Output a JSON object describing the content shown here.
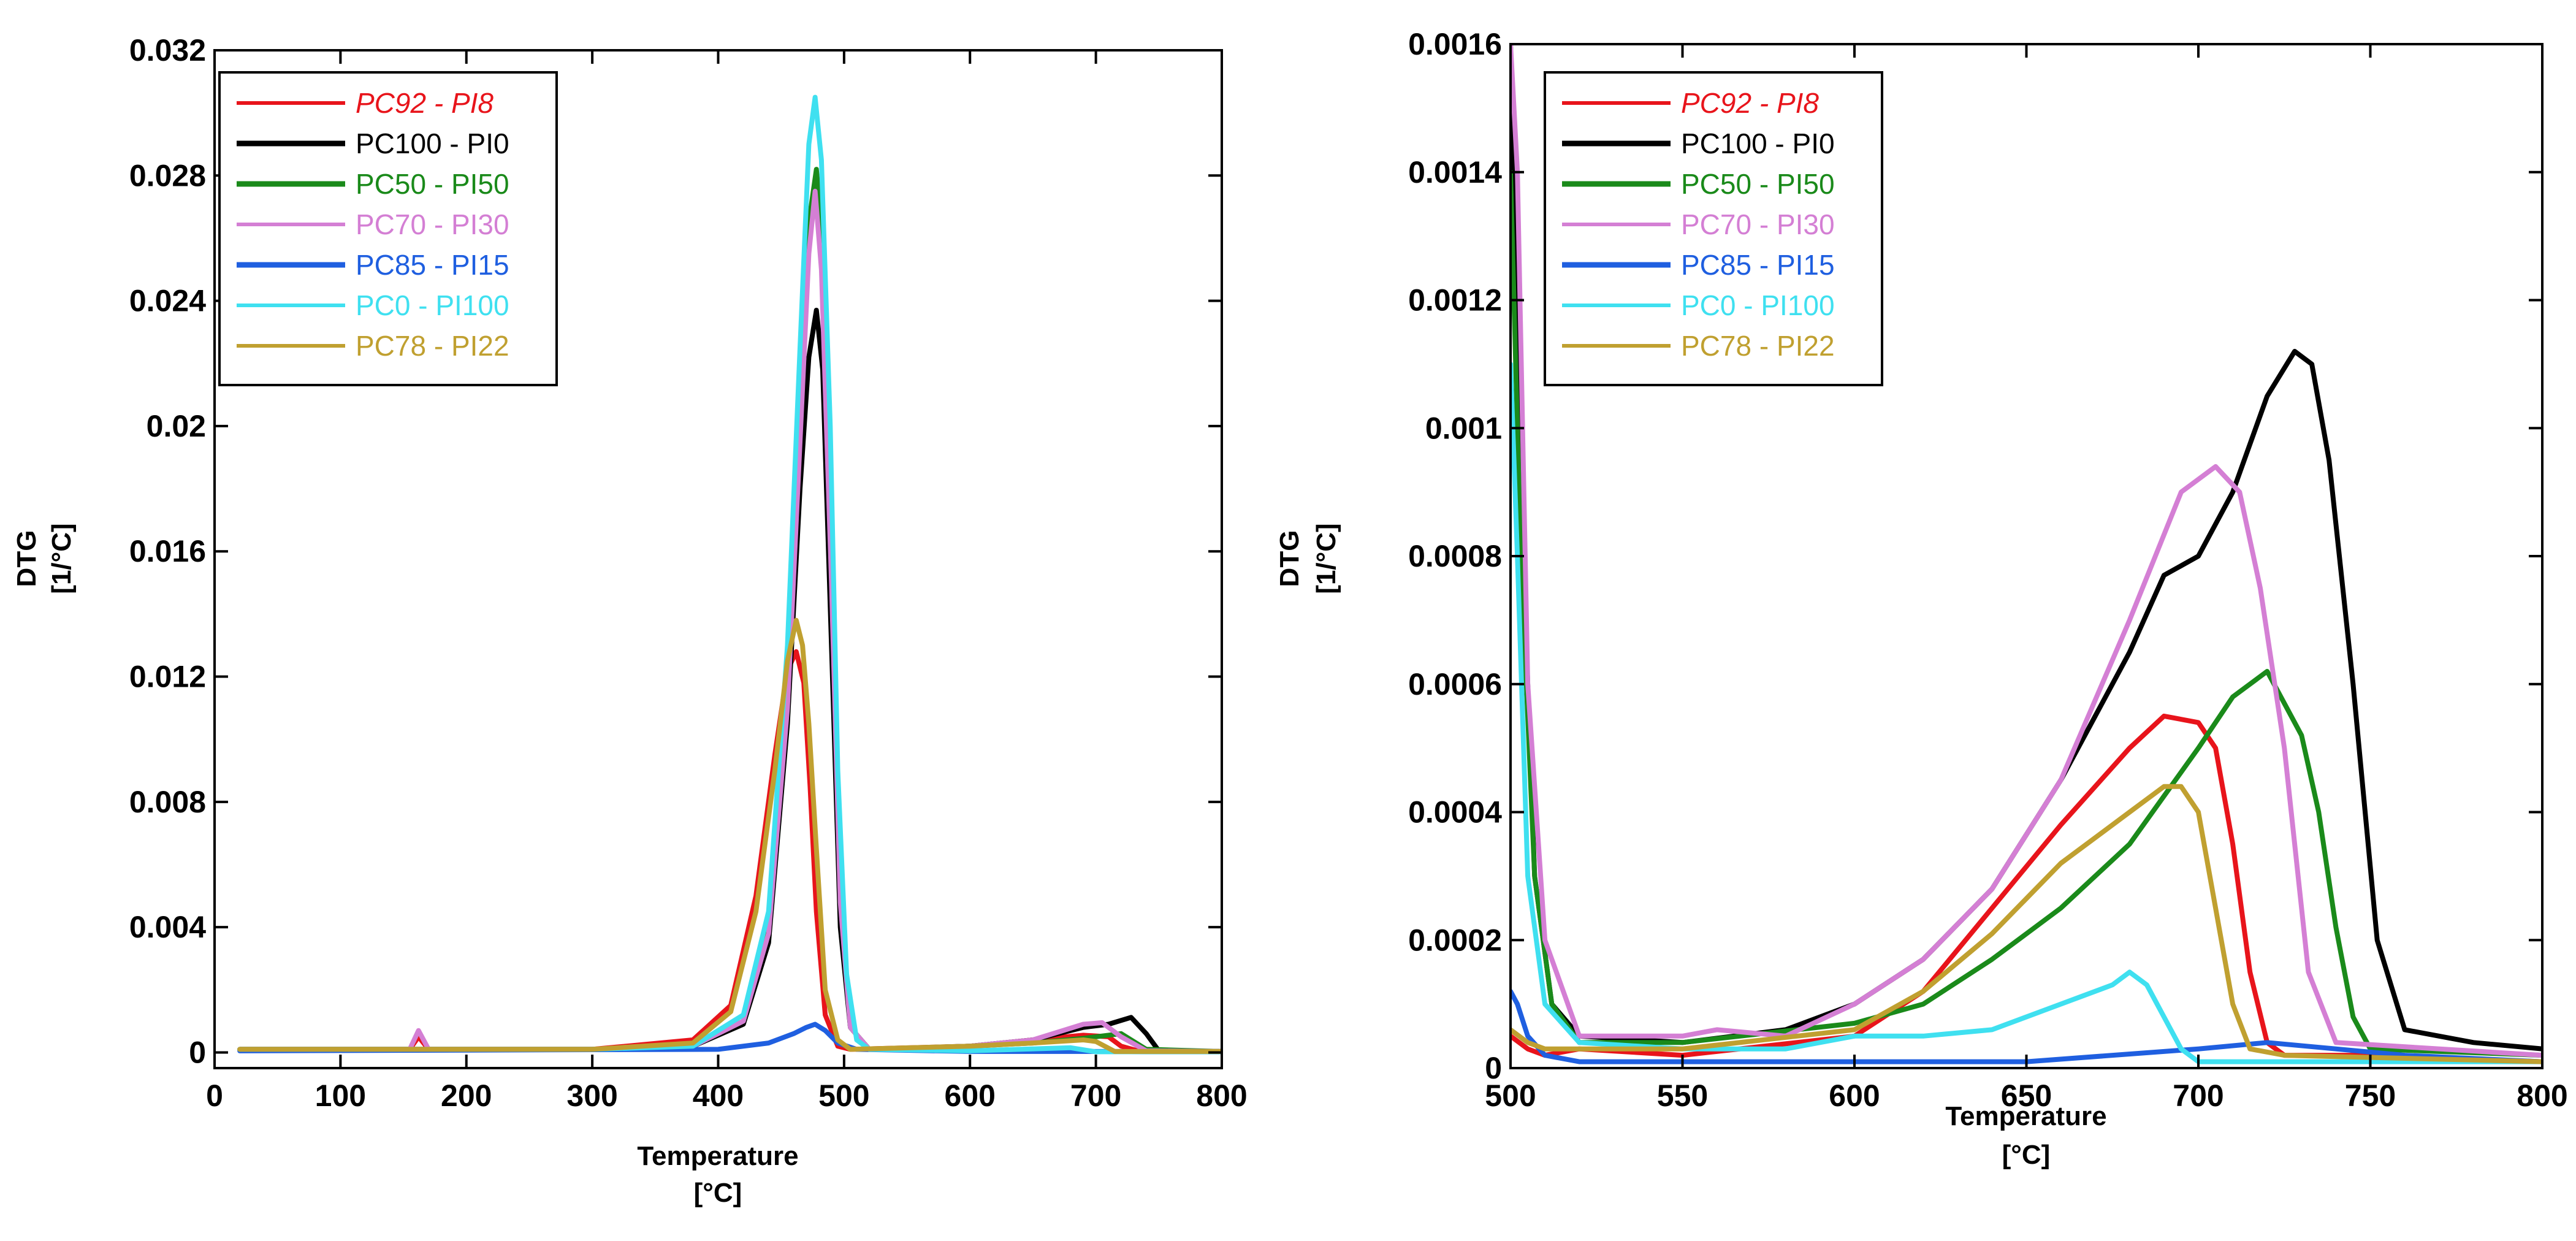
{
  "chart_data": [
    {
      "type": "line",
      "title": "",
      "xlabel": "Temperature",
      "xunit": "[°C]",
      "ylabel": "DTG",
      "yunit": "[1/°C]",
      "xlim": [
        0,
        800
      ],
      "ylim": [
        -0.0005,
        0.032
      ],
      "xticks": [
        0,
        100,
        200,
        300,
        400,
        500,
        600,
        700,
        800
      ],
      "xtick_labels": [
        "0",
        "100",
        "200",
        "300",
        "400",
        "500",
        "600",
        "700",
        "800"
      ],
      "yticks": [
        0,
        0.004,
        0.008,
        0.012,
        0.016,
        0.02,
        0.024,
        0.028,
        0.032
      ],
      "ytick_labels": [
        "0",
        "0.004",
        "0.008",
        "0.012",
        "0.016",
        "0.02",
        "0.024",
        "0.028",
        "0.032"
      ],
      "grid": false,
      "legend_position": "top-left",
      "series": [
        {
          "name": "PC92 - PI8",
          "color": "#e8141b",
          "italic": true,
          "x": [
            20,
            155,
            162,
            170,
            300,
            380,
            410,
            430,
            445,
            455,
            462,
            468,
            473,
            478,
            485,
            495,
            505,
            600,
            650,
            690,
            710,
            720,
            735,
            800
          ],
          "y": [
            0.0001,
            0.0001,
            0.0005,
            0.0001,
            0.0001,
            0.0004,
            0.0015,
            0.005,
            0.0095,
            0.0122,
            0.0128,
            0.0118,
            0.0085,
            0.0045,
            0.0012,
            0.0002,
            0.0001,
            0.0002,
            0.0004,
            0.00055,
            0.0005,
            0.0002,
            3e-05,
            3e-05
          ]
        },
        {
          "name": "PC100 - PI0",
          "color": "#000000",
          "italic": false,
          "x": [
            20,
            300,
            380,
            420,
            440,
            455,
            465,
            472,
            478,
            483,
            490,
            497,
            505,
            520,
            600,
            650,
            690,
            710,
            728,
            740,
            750,
            800
          ],
          "y": [
            0.0001,
            0.0001,
            0.0002,
            0.0009,
            0.0035,
            0.0105,
            0.018,
            0.0222,
            0.0237,
            0.0218,
            0.013,
            0.004,
            0.0008,
            0.0001,
            0.0002,
            0.0004,
            0.0008,
            0.0009,
            0.00112,
            0.0006,
            5e-05,
            3e-05
          ]
        },
        {
          "name": "PC50 - PI50",
          "color": "#1a8a1a",
          "italic": false,
          "x": [
            20,
            300,
            380,
            420,
            440,
            455,
            465,
            472,
            478,
            483,
            490,
            497,
            505,
            520,
            600,
            650,
            690,
            720,
            740,
            800
          ],
          "y": [
            0.0001,
            0.0001,
            0.0002,
            0.001,
            0.004,
            0.012,
            0.021,
            0.0265,
            0.0282,
            0.026,
            0.016,
            0.005,
            0.0008,
            0.0001,
            0.0002,
            0.0003,
            0.00045,
            0.0006,
            0.0001,
            3e-05
          ]
        },
        {
          "name": "PC70 - PI30",
          "color": "#d47fd4",
          "italic": false,
          "x": [
            20,
            155,
            162,
            170,
            300,
            380,
            420,
            440,
            455,
            465,
            472,
            477,
            482,
            490,
            497,
            505,
            520,
            600,
            650,
            690,
            705,
            720,
            740,
            800
          ],
          "y": [
            0.0001,
            0.0001,
            0.0007,
            0.0001,
            0.0001,
            0.0002,
            0.001,
            0.0038,
            0.011,
            0.0195,
            0.0255,
            0.0275,
            0.025,
            0.015,
            0.0048,
            0.0008,
            0.0001,
            0.0002,
            0.0004,
            0.0009,
            0.00095,
            0.0005,
            5e-05,
            3e-05
          ]
        },
        {
          "name": "PC85 - PI15",
          "color": "#1f5fe0",
          "italic": false,
          "x": [
            20,
            400,
            440,
            460,
            470,
            477,
            485,
            495,
            510,
            600,
            700,
            720,
            740,
            800
          ],
          "y": [
            5e-05,
            0.0001,
            0.0003,
            0.0006,
            0.0008,
            0.0009,
            0.0007,
            0.0003,
            0.0001,
            3e-05,
            3e-05,
            3e-05,
            2e-05,
            2e-05
          ]
        },
        {
          "name": "PC0 - PI100",
          "color": "#3fe0f0",
          "italic": false,
          "x": [
            20,
            300,
            380,
            420,
            440,
            455,
            465,
            472,
            477,
            482,
            489,
            495,
            502,
            510,
            520,
            600,
            680,
            700,
            800
          ],
          "y": [
            0.0001,
            0.0001,
            0.0002,
            0.0012,
            0.0045,
            0.013,
            0.0225,
            0.029,
            0.0305,
            0.0285,
            0.02,
            0.009,
            0.0025,
            0.0004,
            0.0001,
            5e-05,
            0.00015,
            2e-05,
            2e-05
          ]
        },
        {
          "name": "PC78 - PI22",
          "color": "#c0a030",
          "italic": false,
          "x": [
            20,
            300,
            380,
            410,
            430,
            445,
            455,
            462,
            467,
            472,
            478,
            485,
            495,
            505,
            600,
            650,
            690,
            700,
            715,
            800
          ],
          "y": [
            0.0001,
            0.0001,
            0.0003,
            0.0013,
            0.0045,
            0.009,
            0.0125,
            0.0138,
            0.013,
            0.0105,
            0.0065,
            0.002,
            0.0004,
            0.0001,
            0.0002,
            0.0003,
            0.0004,
            0.00035,
            3e-05,
            3e-05
          ]
        }
      ]
    },
    {
      "type": "line",
      "title": "",
      "xlabel": "Temperature",
      "xunit": "[°C]",
      "ylabel": "DTG",
      "yunit": "[1/°C]",
      "xlim": [
        500,
        800
      ],
      "ylim": [
        0,
        0.0016
      ],
      "xticks": [
        500,
        550,
        600,
        650,
        700,
        750,
        800
      ],
      "xtick_labels": [
        "500",
        "550",
        "600",
        "650",
        "700",
        "750",
        "800"
      ],
      "yticks": [
        0,
        0.0002,
        0.0004,
        0.0006,
        0.0008,
        0.001,
        0.0012,
        0.0014,
        0.0016
      ],
      "ytick_labels": [
        "0",
        "0.0002",
        "0.0004",
        "0.0006",
        "0.0008",
        "0.001",
        "0.0012",
        "0.0014",
        "0.0016"
      ],
      "grid": false,
      "legend_position": "top-left",
      "series": [
        {
          "name": "PC92 - PI8",
          "color": "#e8141b",
          "italic": true,
          "x": [
            500,
            505,
            510,
            520,
            550,
            600,
            620,
            640,
            660,
            680,
            690,
            700,
            705,
            710,
            715,
            720,
            725,
            730,
            750,
            800
          ],
          "y": [
            5e-05,
            3e-05,
            2e-05,
            3e-05,
            2e-05,
            5e-05,
            0.00012,
            0.00025,
            0.00038,
            0.0005,
            0.00055,
            0.00054,
            0.0005,
            0.00035,
            0.00015,
            4e-05,
            2e-05,
            2e-05,
            2e-05,
            1e-05
          ]
        },
        {
          "name": "PC100 - PI0",
          "color": "#000000",
          "italic": false,
          "x": [
            500,
            503,
            507,
            512,
            520,
            550,
            580,
            600,
            620,
            640,
            660,
            680,
            690,
            700,
            710,
            720,
            728,
            733,
            738,
            745,
            752,
            760,
            780,
            800
          ],
          "y": [
            0.0016,
            0.0009,
            0.0003,
            0.0001,
            5e-05,
            4e-05,
            6e-05,
            0.0001,
            0.00017,
            0.00028,
            0.00045,
            0.00065,
            0.00077,
            0.0008,
            0.0009,
            0.00105,
            0.00112,
            0.0011,
            0.00095,
            0.0006,
            0.0002,
            6e-05,
            4e-05,
            3e-05
          ]
        },
        {
          "name": "PC50 - PI50",
          "color": "#1a8a1a",
          "italic": false,
          "x": [
            500,
            503,
            507,
            512,
            520,
            550,
            600,
            620,
            640,
            660,
            680,
            700,
            710,
            720,
            730,
            735,
            740,
            745,
            750,
            800
          ],
          "y": [
            0.0014,
            0.0008,
            0.0003,
            0.0001,
            4e-05,
            4e-05,
            7e-05,
            0.0001,
            0.00017,
            0.00025,
            0.00035,
            0.0005,
            0.00058,
            0.00062,
            0.00052,
            0.0004,
            0.00022,
            8e-05,
            3e-05,
            2e-05
          ]
        },
        {
          "name": "PC70 - PI30",
          "color": "#d47fd4",
          "italic": false,
          "x": [
            500,
            502,
            505,
            510,
            520,
            550,
            560,
            580,
            600,
            620,
            640,
            660,
            680,
            695,
            705,
            712,
            718,
            725,
            732,
            740,
            800
          ],
          "y": [
            0.0016,
            0.0014,
            0.0006,
            0.0002,
            5e-05,
            5e-05,
            6e-05,
            5e-05,
            0.0001,
            0.00017,
            0.00028,
            0.00045,
            0.0007,
            0.0009,
            0.00094,
            0.0009,
            0.00075,
            0.0005,
            0.00015,
            4e-05,
            2e-05
          ]
        },
        {
          "name": "PC85 - PI15",
          "color": "#1f5fe0",
          "italic": false,
          "x": [
            500,
            502,
            505,
            510,
            520,
            550,
            600,
            650,
            700,
            720,
            740,
            760,
            800
          ],
          "y": [
            0.00012,
            0.0001,
            5e-05,
            2e-05,
            1e-05,
            1e-05,
            1e-05,
            1e-05,
            3e-05,
            4e-05,
            3e-05,
            2e-05,
            1e-05
          ]
        },
        {
          "name": "PC0 - PI100",
          "color": "#3fe0f0",
          "italic": false,
          "x": [
            500,
            502,
            505,
            510,
            520,
            550,
            580,
            600,
            620,
            640,
            660,
            675,
            680,
            685,
            690,
            695,
            700,
            710,
            800
          ],
          "y": [
            0.0011,
            0.0008,
            0.0003,
            0.0001,
            4e-05,
            3e-05,
            3e-05,
            5e-05,
            5e-05,
            6e-05,
            0.0001,
            0.00013,
            0.00015,
            0.00013,
            8e-05,
            3e-05,
            1e-05,
            1e-05,
            1e-05
          ]
        },
        {
          "name": "PC78 - PI22",
          "color": "#c0a030",
          "italic": false,
          "x": [
            500,
            505,
            510,
            520,
            550,
            600,
            620,
            640,
            660,
            680,
            690,
            695,
            700,
            705,
            710,
            715,
            725,
            800
          ],
          "y": [
            6e-05,
            4e-05,
            3e-05,
            3e-05,
            3e-05,
            6e-05,
            0.00012,
            0.00021,
            0.00032,
            0.0004,
            0.00044,
            0.00044,
            0.0004,
            0.00025,
            0.0001,
            3e-05,
            2e-05,
            1e-05
          ]
        }
      ]
    }
  ]
}
